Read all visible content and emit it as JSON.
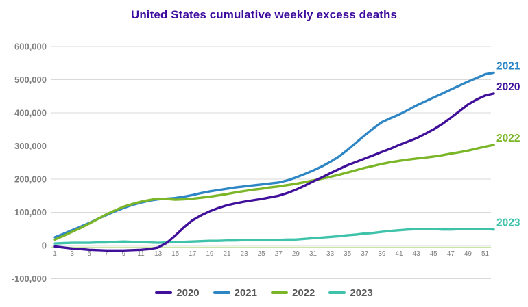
{
  "title": "United States cumulative weekly excess deaths",
  "colors": {
    "title": "#3E0C9E",
    "grid": "#D9D9D9",
    "zero_axis": "#C9E3A8",
    "axis_text": "#7F7F7F",
    "legend_text": "#595959"
  },
  "chart_data": {
    "type": "line",
    "title": "United States cumulative weekly excess deaths",
    "xlabel": "",
    "ylabel": "",
    "x_label_unit": "week of year",
    "x_tick_labels": [
      1,
      3,
      5,
      7,
      9,
      11,
      13,
      15,
      17,
      19,
      21,
      23,
      25,
      27,
      29,
      31,
      33,
      35,
      37,
      39,
      41,
      43,
      45,
      47,
      49,
      51
    ],
    "x_range": [
      1,
      52
    ],
    "ylim": [
      -100000,
      600000
    ],
    "y_tick_values": [
      600000,
      500000,
      400000,
      300000,
      200000,
      100000,
      0,
      -100000
    ],
    "y_tick_labels": [
      "600,000",
      "500,000",
      "400,000",
      "300,000",
      "200,000",
      "100,000",
      "0",
      "-100,000"
    ],
    "grid": "horizontal",
    "legend_position": "bottom",
    "end_labels": true,
    "series": [
      {
        "name": "2020",
        "color": "#40109B",
        "values": [
          -3000,
          -6000,
          -9000,
          -11000,
          -13000,
          -14000,
          -15000,
          -15000,
          -15000,
          -14000,
          -13000,
          -11000,
          -6000,
          8000,
          30000,
          55000,
          76000,
          91000,
          103000,
          113000,
          121000,
          127000,
          132000,
          136000,
          140000,
          145000,
          150000,
          158000,
          168000,
          180000,
          193000,
          205000,
          218000,
          230000,
          242000,
          252000,
          262000,
          272000,
          282000,
          292000,
          303000,
          313000,
          323000,
          336000,
          350000,
          366000,
          385000,
          405000,
          425000,
          440000,
          452000,
          458000
        ]
      },
      {
        "name": "2021",
        "color": "#2E86C5",
        "values": [
          25000,
          35000,
          46000,
          57000,
          68000,
          80000,
          92000,
          103000,
          113000,
          122000,
          129000,
          135000,
          139000,
          141000,
          143000,
          147000,
          152000,
          158000,
          163000,
          167000,
          171000,
          175000,
          178000,
          181000,
          184000,
          187000,
          190000,
          196000,
          205000,
          215000,
          226000,
          238000,
          252000,
          268000,
          288000,
          310000,
          332000,
          353000,
          372000,
          384000,
          395000,
          408000,
          422000,
          434000,
          446000,
          458000,
          470000,
          482000,
          494000,
          505000,
          516000,
          521000
        ]
      },
      {
        "name": "2022",
        "color": "#7BB528",
        "values": [
          18000,
          29000,
          41000,
          53000,
          66000,
          80000,
          94000,
          106000,
          117000,
          125000,
          132000,
          137000,
          141000,
          140000,
          138000,
          139000,
          141000,
          144000,
          147000,
          151000,
          155000,
          160000,
          164000,
          168000,
          171000,
          175000,
          178000,
          182000,
          186000,
          191000,
          196000,
          201000,
          207000,
          213000,
          220000,
          227000,
          234000,
          240000,
          246000,
          251000,
          255000,
          259000,
          262000,
          265000,
          268000,
          272000,
          277000,
          281000,
          286000,
          292000,
          298000,
          303000
        ]
      },
      {
        "name": "2023",
        "color": "#3FC2AA",
        "values": [
          6000,
          7000,
          8000,
          8000,
          8000,
          9000,
          9000,
          11000,
          12000,
          11000,
          10000,
          9000,
          8000,
          9000,
          10000,
          11000,
          12000,
          13000,
          14000,
          14000,
          15000,
          15000,
          16000,
          16000,
          16000,
          17000,
          17000,
          18000,
          18000,
          20000,
          22000,
          24000,
          26000,
          28000,
          31000,
          33000,
          36000,
          38000,
          41000,
          44000,
          46000,
          48000,
          49000,
          50000,
          50000,
          48000,
          48000,
          49000,
          50000,
          50000,
          50000,
          48000
        ]
      }
    ]
  }
}
